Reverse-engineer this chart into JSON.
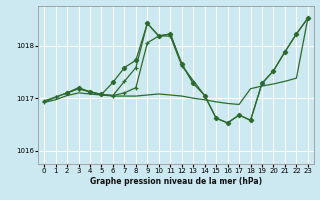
{
  "xlabel": "Graphe pression niveau de la mer (hPa)",
  "ylim": [
    1015.75,
    1018.75
  ],
  "xlim": [
    -0.5,
    23.5
  ],
  "yticks": [
    1016,
    1017,
    1018
  ],
  "xticks": [
    0,
    1,
    2,
    3,
    4,
    5,
    6,
    7,
    8,
    9,
    10,
    11,
    12,
    13,
    14,
    15,
    16,
    17,
    18,
    19,
    20,
    21,
    22,
    23
  ],
  "bg_color": "#cce8f0",
  "grid_color": "#ffffff",
  "line_color": "#2d6a2d",
  "lines": [
    {
      "x": [
        0,
        1,
        2,
        3,
        3,
        4,
        5,
        6,
        7,
        8,
        9,
        10,
        11,
        12,
        13
      ],
      "y": [
        1016.95,
        1017.02,
        1017.1,
        1017.18,
        1017.18,
        1017.12,
        1017.07,
        1017.05,
        1017.32,
        1017.58,
        1018.42,
        1018.18,
        1018.22,
        1017.65,
        1017.28
      ],
      "marker": "+"
    },
    {
      "x": [
        0,
        1,
        2,
        3,
        4,
        5,
        6,
        7,
        8,
        9,
        10,
        11,
        12,
        14,
        15,
        16,
        17,
        18,
        19,
        20,
        21,
        22,
        23
      ],
      "y": [
        1016.92,
        1017.02,
        1017.1,
        1017.18,
        1017.12,
        1017.07,
        1017.05,
        1017.1,
        1017.2,
        1018.05,
        1018.18,
        1018.18,
        1017.62,
        1017.05,
        1016.62,
        1016.53,
        1016.68,
        1016.58,
        1017.28,
        1017.52,
        1017.88,
        1018.22,
        1018.52
      ],
      "marker": "+"
    },
    {
      "x": [
        2,
        3,
        4,
        5,
        6,
        7,
        8,
        9,
        10,
        11,
        12,
        13,
        14,
        15,
        16,
        17,
        18,
        19,
        20,
        21,
        22,
        23
      ],
      "y": [
        1017.1,
        1017.2,
        1017.12,
        1017.07,
        1017.3,
        1017.58,
        1017.72,
        1018.42,
        1018.18,
        1018.22,
        1017.65,
        1017.28,
        1017.05,
        1016.62,
        1016.53,
        1016.68,
        1016.58,
        1017.28,
        1017.52,
        1017.88,
        1018.22,
        1018.52
      ],
      "marker": "D"
    },
    {
      "x": [
        0,
        1,
        2,
        3,
        4,
        5,
        6,
        7,
        8,
        9,
        10,
        11,
        12,
        13,
        14,
        15,
        16,
        17,
        18,
        19,
        20,
        21,
        22,
        23
      ],
      "y": [
        1016.92,
        1016.97,
        1017.05,
        1017.1,
        1017.08,
        1017.06,
        1017.04,
        1017.04,
        1017.04,
        1017.06,
        1017.08,
        1017.06,
        1017.04,
        1017.0,
        1016.97,
        1016.93,
        1016.9,
        1016.88,
        1017.18,
        1017.23,
        1017.27,
        1017.32,
        1017.38,
        1018.52
      ],
      "marker": null
    }
  ]
}
